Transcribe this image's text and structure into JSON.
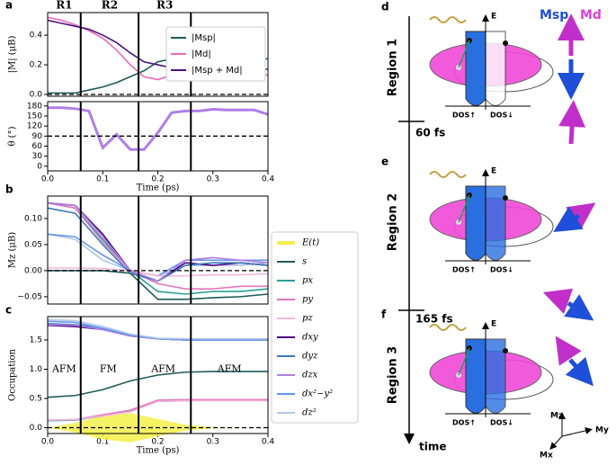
{
  "chart_data": [
    {
      "panel": "a",
      "type": "line",
      "ylabel": "|M| (μB)",
      "xlim": [
        0,
        0.4
      ],
      "ylim": [
        -0.012,
        0.552
      ],
      "yticks": [
        {
          "value": 0,
          "label": "0.0"
        },
        {
          "value": 0.2,
          "label": "0.2"
        },
        {
          "value": 0.4,
          "label": "0.4"
        }
      ],
      "region_lines": [
        0.06,
        0.165,
        0.26
      ],
      "region_labels": [
        "R1",
        "R2",
        "R3"
      ],
      "hline": 0,
      "legend": "upper right",
      "x": [
        0,
        0.025,
        0.05,
        0.075,
        0.1,
        0.125,
        0.15,
        0.175,
        0.2,
        0.225,
        0.25,
        0.275,
        0.3,
        0.325,
        0.35,
        0.375,
        0.4
      ],
      "series": [
        {
          "name": "|Msp|",
          "color": "#1d5c5a",
          "values": [
            0.01,
            0.01,
            0.01,
            0.03,
            0.05,
            0.08,
            0.12,
            0.16,
            0.22,
            0.24,
            0.24,
            0.24,
            0.24,
            0.24,
            0.24,
            0.24,
            0.24
          ]
        },
        {
          "name": "|Md|",
          "color": "#e86bb8",
          "values": [
            0.52,
            0.5,
            0.47,
            0.43,
            0.38,
            0.3,
            0.2,
            0.12,
            0.1,
            0.13,
            0.14,
            0.14,
            0.13,
            0.14,
            0.13,
            0.14,
            0.13
          ]
        },
        {
          "name": "|Msp + Md|",
          "color": "#4b1480",
          "values": [
            0.5,
            0.48,
            0.46,
            0.44,
            0.4,
            0.35,
            0.28,
            0.22,
            0.2,
            0.18,
            0.19,
            0.19,
            0.18,
            0.17,
            0.18,
            0.17,
            0.17
          ]
        }
      ]
    },
    {
      "type": "line",
      "ylabel": "θ (°)",
      "xlabel": "Time (ps)",
      "xlim": [
        0,
        0.4
      ],
      "ylim": [
        -14,
        193
      ],
      "yticks": [
        0,
        30,
        60,
        90,
        120,
        150,
        180
      ],
      "xticks": [
        {
          "value": 0,
          "label": "0.0"
        },
        {
          "value": 0.1,
          "label": "0.1"
        },
        {
          "value": 0.2,
          "label": "0.2"
        },
        {
          "value": 0.3,
          "label": "0.3"
        },
        {
          "value": 0.4,
          "label": "0.4"
        }
      ],
      "region_lines": [
        0.06,
        0.165,
        0.26
      ],
      "hline": 90,
      "x": [
        0,
        0.025,
        0.05,
        0.075,
        0.1,
        0.125,
        0.15,
        0.175,
        0.2,
        0.225,
        0.25,
        0.275,
        0.3,
        0.325,
        0.35,
        0.375,
        0.4
      ],
      "series": [
        {
          "color": "#b07ee8",
          "values": [
            175,
            175,
            172,
            165,
            55,
            95,
            50,
            50,
            100,
            160,
            165,
            165,
            170,
            168,
            168,
            168,
            155
          ]
        }
      ]
    },
    {
      "panel": "b",
      "type": "line",
      "ylabel": "Mz (μB)",
      "xlim": [
        0,
        0.4
      ],
      "ylim": [
        -0.064,
        0.143
      ],
      "yticks": [
        {
          "value": -0.05,
          "label": "−0.05"
        },
        {
          "value": 0,
          "label": "0.00"
        },
        {
          "value": 0.05,
          "label": "0.05"
        },
        {
          "value": 0.1,
          "label": "0.10"
        }
      ],
      "region_lines": [
        0.06,
        0.165,
        0.26
      ],
      "hline": 0,
      "x": [
        0,
        0.05,
        0.1,
        0.15,
        0.2,
        0.25,
        0.3,
        0.35,
        0.4
      ],
      "series": [
        {
          "color": "#aec7e8",
          "values": [
            0.07,
            0.06,
            0.02,
            0,
            -0.01,
            0.01,
            0.01,
            0.01,
            0.015
          ]
        },
        {
          "color": "#6495ed",
          "values": [
            0.07,
            0.065,
            0.03,
            0,
            -0.01,
            0.02,
            0.02,
            0.02,
            0.02
          ]
        },
        {
          "color": "#2aa198",
          "values": [
            0.13,
            0.12,
            0.06,
            0,
            -0.04,
            -0.045,
            -0.04,
            -0.04,
            -0.035
          ]
        },
        {
          "color": "#e377c2",
          "values": [
            0.13,
            0.12,
            0.055,
            0,
            -0.025,
            -0.035,
            -0.035,
            -0.03,
            -0.03
          ]
        },
        {
          "color": "#f3b6dc",
          "values": [
            0.005,
            0.005,
            0.004,
            0,
            -0.01,
            -0.01,
            -0.008,
            -0.008,
            -0.006
          ]
        },
        {
          "color": "#4b0082",
          "values": [
            0.13,
            0.125,
            0.07,
            0,
            -0.02,
            0.015,
            0.01,
            0.015,
            0.01
          ]
        },
        {
          "color": "#3d7ab8",
          "values": [
            0.12,
            0.11,
            0.05,
            -0.005,
            -0.02,
            0.01,
            0.015,
            0.015,
            0.01
          ]
        },
        {
          "color": "#b07fe0",
          "values": [
            0.13,
            0.125,
            0.065,
            0,
            -0.02,
            0.02,
            0.025,
            0.02,
            0.015
          ]
        },
        {
          "color": "#1d5c5a",
          "values": [
            0,
            0,
            0,
            -0.005,
            -0.055,
            -0.055,
            -0.052,
            -0.05,
            -0.045
          ]
        }
      ]
    },
    {
      "panel": "c",
      "type": "line",
      "ylabel": "Occupation",
      "xlabel": "Time (ps)",
      "xlim": [
        0,
        0.4
      ],
      "ylim": [
        -0.1,
        1.9
      ],
      "yticks": [
        {
          "value": 0,
          "label": "0.0"
        },
        {
          "value": 0.5,
          "label": "0.5"
        },
        {
          "value": 1,
          "label": "1.0"
        },
        {
          "value": 1.5,
          "label": "1.5"
        }
      ],
      "xticks": [
        {
          "value": 0,
          "label": "0.0"
        },
        {
          "value": 0.1,
          "label": "0.1"
        },
        {
          "value": 0.2,
          "label": "0.2"
        },
        {
          "value": 0.3,
          "label": "0.3"
        },
        {
          "value": 0.4,
          "label": "0.4"
        }
      ],
      "region_lines": [
        0.06,
        0.165,
        0.26
      ],
      "hline": 0,
      "legend": "right",
      "annotations": [
        {
          "text": "AFM",
          "x": 0.03,
          "y": 1.0
        },
        {
          "text": "FM",
          "x": 0.11,
          "y": 1.0
        },
        {
          "text": "AFM",
          "x": 0.21,
          "y": 1.0
        },
        {
          "text": "AFM",
          "x": 0.33,
          "y": 1.0
        }
      ],
      "x": [
        0,
        0.05,
        0.1,
        0.15,
        0.2,
        0.25,
        0.3,
        0.35,
        0.4
      ],
      "series": [
        {
          "name": "E(t)",
          "color": "#f5f04a",
          "style": "fill",
          "values": [
            0,
            0.08,
            0.2,
            0.25,
            0.15,
            0.05,
            0.01,
            0,
            0
          ]
        },
        {
          "name": "s",
          "color": "#1d5c5a",
          "values": [
            0.52,
            0.55,
            0.65,
            0.8,
            0.9,
            0.95,
            0.96,
            0.96,
            0.96
          ]
        },
        {
          "name": "px",
          "color": "#2aa198",
          "values": [
            0.12,
            0.13,
            0.2,
            0.28,
            0.45,
            0.46,
            0.47,
            0.47,
            0.47
          ]
        },
        {
          "name": "py",
          "color": "#e377c2",
          "values": [
            0.13,
            0.14,
            0.22,
            0.3,
            0.47,
            0.48,
            0.48,
            0.48,
            0.48
          ]
        },
        {
          "name": "pz",
          "color": "#f3b6dc",
          "values": [
            0.13,
            0.14,
            0.2,
            0.27,
            0.45,
            0.46,
            0.46,
            0.46,
            0.46
          ]
        },
        {
          "name": "dxy",
          "color": "#4b0082",
          "values": [
            1.75,
            1.73,
            1.68,
            1.57,
            1.52,
            1.5,
            1.5,
            1.5,
            1.5
          ]
        },
        {
          "name": "dyz",
          "color": "#3d7ab8",
          "values": [
            1.78,
            1.76,
            1.7,
            1.58,
            1.52,
            1.5,
            1.5,
            1.5,
            1.5
          ]
        },
        {
          "name": "dzx",
          "color": "#b07fe0",
          "values": [
            1.76,
            1.75,
            1.68,
            1.57,
            1.52,
            1.5,
            1.5,
            1.5,
            1.5
          ]
        },
        {
          "name": "dx²−y²",
          "color": "#6495ed",
          "values": [
            1.82,
            1.8,
            1.7,
            1.58,
            1.52,
            1.5,
            1.5,
            1.5,
            1.5
          ]
        },
        {
          "name": "dz²",
          "color": "#aec7e8",
          "values": [
            1.85,
            1.83,
            1.73,
            1.6,
            1.53,
            1.52,
            1.52,
            1.52,
            1.52
          ]
        }
      ]
    }
  ],
  "diagram": {
    "panels": [
      {
        "letter": "d",
        "region": "Region 1",
        "energy": "E",
        "dos_up": "DOS↑",
        "dos_down": "DOS↓"
      },
      {
        "letter": "e",
        "region": "Region 2",
        "energy": "E",
        "dos_up": "DOS↑",
        "dos_down": "DOS↓"
      },
      {
        "letter": "f",
        "region": "Region 3",
        "energy": "E",
        "dos_up": "DOS↑",
        "dos_down": "DOS↓"
      }
    ],
    "time_marks": [
      "60 fs",
      "165 fs"
    ],
    "time": "time",
    "moments": {
      "sp": "Msp",
      "d": "Md"
    },
    "axes": [
      "Mz",
      "My",
      "Mx"
    ]
  }
}
